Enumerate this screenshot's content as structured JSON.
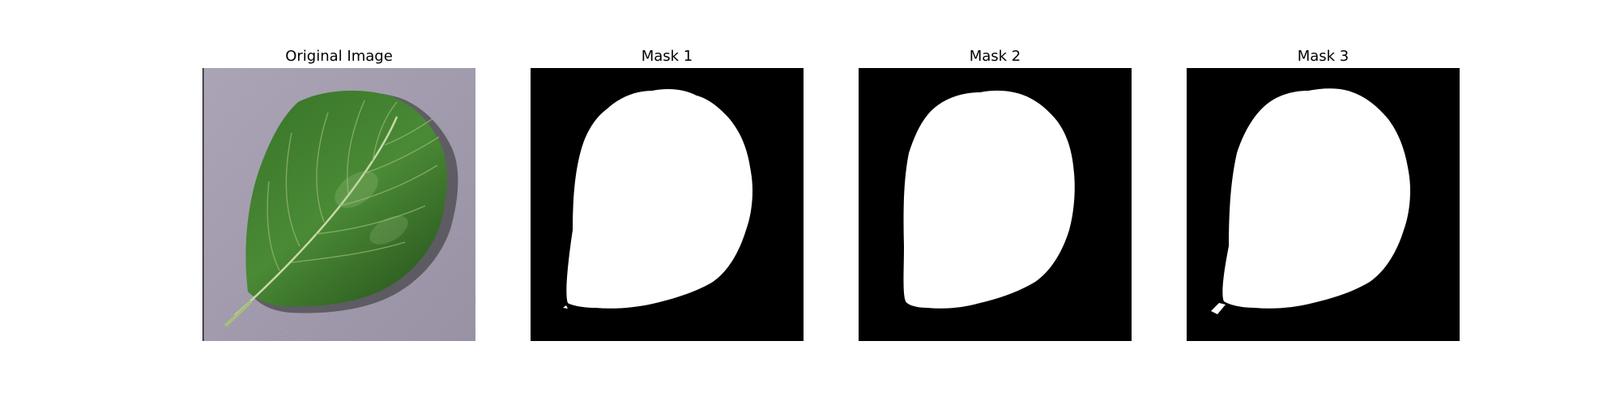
{
  "panels": [
    {
      "title": "Original Image"
    },
    {
      "title": "Mask 1"
    },
    {
      "title": "Mask 2"
    },
    {
      "title": "Mask 3"
    }
  ],
  "colors": {
    "background": "#ffffff",
    "mask_background": "#000000",
    "mask_foreground": "#ffffff",
    "leaf_dark": "#2f5a22",
    "leaf_mid": "#3f7a2d",
    "leaf_light": "#5e9a45",
    "surface": "#a9a2b4",
    "shadow": "#2a2a2a"
  }
}
